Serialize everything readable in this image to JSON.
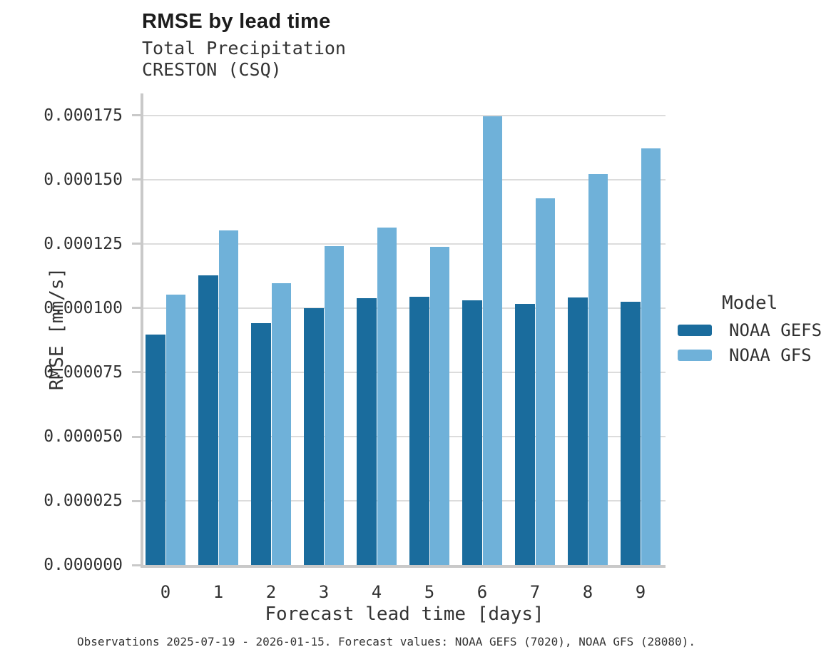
{
  "chart_data": {
    "type": "bar",
    "title": "RMSE by lead time",
    "subtitle": [
      "Total Precipitation",
      "CRESTON (CSQ)"
    ],
    "xlabel": "Forecast lead time [days]",
    "ylabel": "RMSE [mm/s]",
    "categories": [
      "0",
      "1",
      "2",
      "3",
      "4",
      "5",
      "6",
      "7",
      "8",
      "9"
    ],
    "ylim": [
      0,
      0.0001836
    ],
    "ytick_step": 2.5e-05,
    "ytick_decimals": 6,
    "grid": true,
    "legend": {
      "title": "Model",
      "position": "right"
    },
    "series": [
      {
        "name": "NOAA GEFS",
        "color": "#1a6c9d",
        "values": [
          8.97e-05,
          0.0001128,
          9.42e-05,
          0.0001,
          0.0001039,
          0.0001044,
          0.0001031,
          0.0001017,
          0.0001042,
          0.0001025
        ]
      },
      {
        "name": "NOAA GFS",
        "color": "#6fb1d9",
        "values": [
          0.0001053,
          0.0001303,
          0.0001097,
          0.0001242,
          0.0001314,
          0.0001239,
          0.0001747,
          0.0001428,
          0.0001522,
          0.0001622
        ]
      }
    ],
    "caption": "Observations 2025-07-19 - 2026-01-15. Forecast values: NOAA GEFS (7020), NOAA GFS (28080)."
  },
  "colors": {
    "grid": "#dcdcdc",
    "axis_domain": "#c9c9c9",
    "title_text": "#1c1c1c",
    "label_text": "#303030"
  }
}
